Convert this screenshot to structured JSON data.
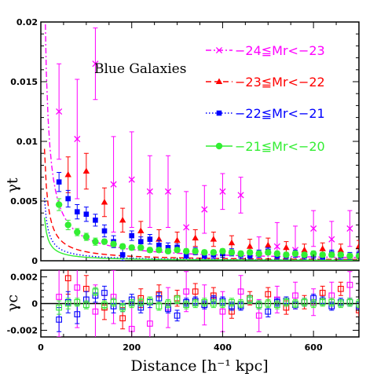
{
  "chart_data": [
    {
      "type": "scatter",
      "panel": "upper",
      "xlabel": "Distance [h⁻¹ kpc]",
      "ylabel": "γt",
      "xlim": [
        0,
        700
      ],
      "ylim": [
        0,
        0.02
      ],
      "xticks": [
        0,
        200,
        400,
        600
      ],
      "xtick_labels": [
        "0",
        "200",
        "400",
        "600"
      ],
      "yticks": [
        0,
        0.005,
        0.01,
        0.015,
        0.02
      ],
      "ytick_labels": [
        "0",
        "0.005",
        "0.01",
        "0.015",
        "0.02"
      ],
      "annotation": "Blue Galaxies",
      "legend_position": "top-right",
      "series": [
        {
          "name": "−24≦Mr<−23",
          "color": "#ff00ff",
          "marker": "x",
          "line": "dash-dot",
          "fit_amplitude": 0.0019,
          "x": [
            40,
            80,
            120,
            160,
            200,
            240,
            280,
            320,
            360,
            400,
            440,
            480,
            520,
            560,
            600,
            640,
            680
          ],
          "y": [
            0.0125,
            0.0102,
            0.0165,
            0.0064,
            0.0068,
            0.0058,
            0.0058,
            0.0028,
            0.0043,
            0.0058,
            0.0055,
            0.0,
            0.0012,
            0.0009,
            0.0027,
            0.0018,
            0.0027
          ],
          "err": [
            0.004,
            0.005,
            0.003,
            0.004,
            0.004,
            0.003,
            0.003,
            0.003,
            0.002,
            0.0015,
            0.0015,
            0.002,
            0.002,
            0.002,
            0.0015,
            0.0015,
            0.0015
          ]
        },
        {
          "name": "−23≦Mr<−22",
          "color": "#ff0000",
          "marker": "triangle",
          "line": "dash",
          "fit_amplitude": 0.00075,
          "x": [
            60,
            100,
            140,
            180,
            220,
            260,
            300,
            340,
            380,
            420,
            460,
            500,
            540,
            580,
            620,
            660,
            700
          ],
          "y": [
            0.0072,
            0.0075,
            0.0049,
            0.0034,
            0.0025,
            0.0018,
            0.0017,
            0.0019,
            0.0018,
            0.0015,
            0.0012,
            0.0013,
            0.0011,
            0.0009,
            0.001,
            0.0009,
            0.0012
          ],
          "err": [
            0.0015,
            0.0015,
            0.0012,
            0.001,
            0.0008,
            0.0008,
            0.0007,
            0.0007,
            0.0006,
            0.0006,
            0.0006,
            0.0006,
            0.0005,
            0.0005,
            0.0005,
            0.0005,
            0.0005
          ]
        },
        {
          "name": "−22≦Mr<−21",
          "color": "#0000ff",
          "marker": "square",
          "line": "dot",
          "fit_amplitude": 0.00042,
          "x": [
            40,
            60,
            80,
            100,
            120,
            140,
            160,
            180,
            200,
            220,
            240,
            260,
            280,
            300,
            320,
            340,
            360,
            380,
            400,
            420,
            440,
            460,
            480,
            500,
            520,
            540,
            560,
            580,
            600,
            620,
            640,
            660,
            680,
            700
          ],
          "y": [
            0.0066,
            0.0052,
            0.0041,
            0.0039,
            0.0034,
            0.0025,
            0.0016,
            0.0005,
            0.0021,
            0.0016,
            0.0018,
            0.0013,
            0.0011,
            0.0011,
            0.0004,
            0.0008,
            0.0004,
            0.0005,
            0.0006,
            0.0007,
            0.0005,
            0.0004,
            0.0006,
            0.0008,
            0.0004,
            0.0004,
            0.0006,
            0.0004,
            0.0005,
            0.0003,
            0.0006,
            0.0004,
            0.0004,
            0.0005
          ],
          "err": [
            0.0008,
            0.0007,
            0.0006,
            0.0006,
            0.0005,
            0.0005,
            0.0005,
            0.0005,
            0.0004,
            0.0004,
            0.0004,
            0.0004,
            0.0004,
            0.0003,
            0.0003,
            0.0003,
            0.0003,
            0.0003,
            0.0003,
            0.0003,
            0.0003,
            0.0003,
            0.0003,
            0.0003,
            0.0003,
            0.0003,
            0.0003,
            0.0003,
            0.0003,
            0.0003,
            0.0003,
            0.0003,
            0.0003,
            0.0003
          ]
        },
        {
          "name": "−21≦Mr<−20",
          "color": "#33ee33",
          "marker": "circle",
          "line": "solid",
          "fit_amplitude": 0.00029,
          "x": [
            40,
            60,
            80,
            100,
            120,
            140,
            160,
            180,
            200,
            220,
            240,
            260,
            280,
            300,
            320,
            340,
            360,
            380,
            400,
            420,
            440,
            460,
            480,
            500,
            520,
            540,
            560,
            580,
            600,
            620,
            640,
            660,
            680,
            700
          ],
          "y": [
            0.0047,
            0.003,
            0.0024,
            0.002,
            0.0016,
            0.0016,
            0.0014,
            0.0012,
            0.0011,
            0.0011,
            0.0009,
            0.0009,
            0.0008,
            0.0009,
            0.0008,
            0.0008,
            0.0007,
            0.0007,
            0.0008,
            0.0007,
            0.0006,
            0.0007,
            0.0006,
            0.0007,
            0.0006,
            0.0005,
            0.0006,
            0.0005,
            0.0006,
            0.0005,
            0.0005,
            0.0005,
            0.0004,
            0.0004
          ],
          "err": [
            0.0005,
            0.0004,
            0.0003,
            0.0003,
            0.0003,
            0.0002,
            0.0002,
            0.0002,
            0.0002,
            0.0002,
            0.0002,
            0.0002,
            0.0002,
            0.0002,
            0.0002,
            0.0002,
            0.0002,
            0.0002,
            0.0002,
            0.0002,
            0.0002,
            0.0002,
            0.0002,
            0.0002,
            0.0002,
            0.0002,
            0.0002,
            0.0002,
            0.0002,
            0.0002,
            0.0002,
            0.0002,
            0.0002,
            0.0002
          ]
        }
      ]
    },
    {
      "type": "scatter",
      "panel": "lower",
      "xlabel": "Distance [h⁻¹ kpc]",
      "ylabel": "γc",
      "xlim": [
        0,
        700
      ],
      "ylim": [
        -0.0025,
        0.0025
      ],
      "yticks": [
        -0.002,
        0,
        0.002
      ],
      "ytick_labels": [
        "-0.002",
        "0",
        "0.002"
      ],
      "zero_line": true,
      "series": [
        {
          "name": "−24≦Mr<−23",
          "color": "#ff00ff",
          "marker": "open-square",
          "x": [
            40,
            80,
            120,
            160,
            200,
            240,
            280,
            320,
            360,
            400,
            440,
            480,
            520,
            560,
            600,
            640,
            680
          ],
          "y": [
            0.0005,
            0.0012,
            -0.0006,
            0.0005,
            -0.0019,
            -0.0015,
            -0.0003,
            0.0009,
            -0.0001,
            -0.0006,
            0.0009,
            -0.0009,
            0.0003,
            0.0006,
            0.0001,
            0.0006,
            0.0014
          ],
          "err": [
            0.003,
            0.003,
            0.002,
            0.002,
            0.002,
            0.0015,
            0.0015,
            0.0015,
            0.0015,
            0.0015,
            0.0012,
            0.0012,
            0.001,
            0.001,
            0.001,
            0.001,
            0.001
          ]
        },
        {
          "name": "−23≦Mr<−22",
          "color": "#ff0000",
          "marker": "open-square",
          "x": [
            60,
            100,
            140,
            180,
            220,
            260,
            300,
            340,
            380,
            420,
            460,
            500,
            540,
            580,
            620,
            660,
            700
          ],
          "y": [
            0.0019,
            0.0011,
            -0.0003,
            -0.0011,
            0.0004,
            0.0007,
            0.0004,
            0.0009,
            0.0006,
            -0.0006,
            0.0004,
            0.0007,
            -0.0003,
            0.0001,
            0.0008,
            0.0011,
            -0.0005
          ],
          "err": [
            0.0012,
            0.001,
            0.0009,
            0.0008,
            0.0007,
            0.0007,
            0.0006,
            0.0006,
            0.0006,
            0.0005,
            0.0005,
            0.0005,
            0.0005,
            0.0005,
            0.0005,
            0.0005,
            0.0005
          ]
        },
        {
          "name": "−22≦Mr<−21",
          "color": "#0000ff",
          "marker": "open-square",
          "x": [
            40,
            60,
            80,
            100,
            120,
            140,
            160,
            180,
            200,
            220,
            240,
            260,
            280,
            300,
            320,
            340,
            360,
            380,
            400,
            420,
            440,
            460,
            480,
            500,
            520,
            540,
            560,
            580,
            600,
            620,
            640,
            660,
            680,
            700
          ],
          "y": [
            -0.0012,
            0.0001,
            -0.0008,
            0.0003,
            0.0006,
            0.0008,
            -0.0002,
            -0.0002,
            0.0003,
            -0.0003,
            0.0001,
            0.0004,
            -0.0004,
            -0.0009,
            0.0001,
            0.0002,
            -0.0001,
            0.0003,
            0.0002,
            -0.0002,
            -0.0002,
            0.0003,
            -0.0001,
            -0.0006,
            0.0001,
            0.0002,
            -0.0001,
            0.0001,
            0.0004,
            0.0002,
            -0.0002,
            0.0001,
            0.0001,
            -0.0002
          ],
          "err": [
            0.0009,
            0.0008,
            0.0007,
            0.0006,
            0.0005,
            0.0005,
            0.0005,
            0.0004,
            0.0004,
            0.0004,
            0.0004,
            0.0004,
            0.0003,
            0.0004,
            0.0003,
            0.0003,
            0.0003,
            0.0003,
            0.0003,
            0.0003,
            0.0003,
            0.0003,
            0.0003,
            0.0004,
            0.0003,
            0.0003,
            0.0003,
            0.0003,
            0.0003,
            0.0003,
            0.0003,
            0.0003,
            0.0003,
            0.0003
          ]
        },
        {
          "name": "−21≦Mr<−20",
          "color": "#33ee33",
          "marker": "open-square",
          "x": [
            40,
            60,
            80,
            100,
            120,
            140,
            160,
            180,
            200,
            220,
            240,
            260,
            280,
            300,
            320,
            340,
            360,
            380,
            400,
            420,
            440,
            460,
            480,
            500,
            520,
            540,
            560,
            580,
            600,
            620,
            640,
            660,
            680,
            700
          ],
          "y": [
            -0.0003,
            0.0,
            0.0001,
            -0.0001,
            0.0009,
            -0.0001,
            0.0001,
            -0.0003,
            0.0,
            0.0001,
            0.0002,
            -0.0002,
            0.0,
            0.0003,
            -0.0001,
            0.0,
            0.0001,
            0.0,
            0.0,
            0.0001,
            0.0,
            0.0003,
            -0.0001,
            0.0,
            -0.0001,
            0.0001,
            0.0,
            0.0001,
            0.0,
            0.0001,
            0.0001,
            0.0,
            0.0001,
            0.0
          ],
          "err": [
            0.0005,
            0.0004,
            0.0003,
            0.0003,
            0.0003,
            0.0003,
            0.0003,
            0.0003,
            0.0003,
            0.0003,
            0.0003,
            0.0003,
            0.0003,
            0.0003,
            0.0003,
            0.0003,
            0.0003,
            0.0003,
            0.0003,
            0.0003,
            0.0003,
            0.0003,
            0.0003,
            0.0003,
            0.0003,
            0.0003,
            0.0003,
            0.0003,
            0.0003,
            0.0003,
            0.0003,
            0.0003,
            0.0003,
            0.0003
          ]
        }
      ]
    }
  ]
}
